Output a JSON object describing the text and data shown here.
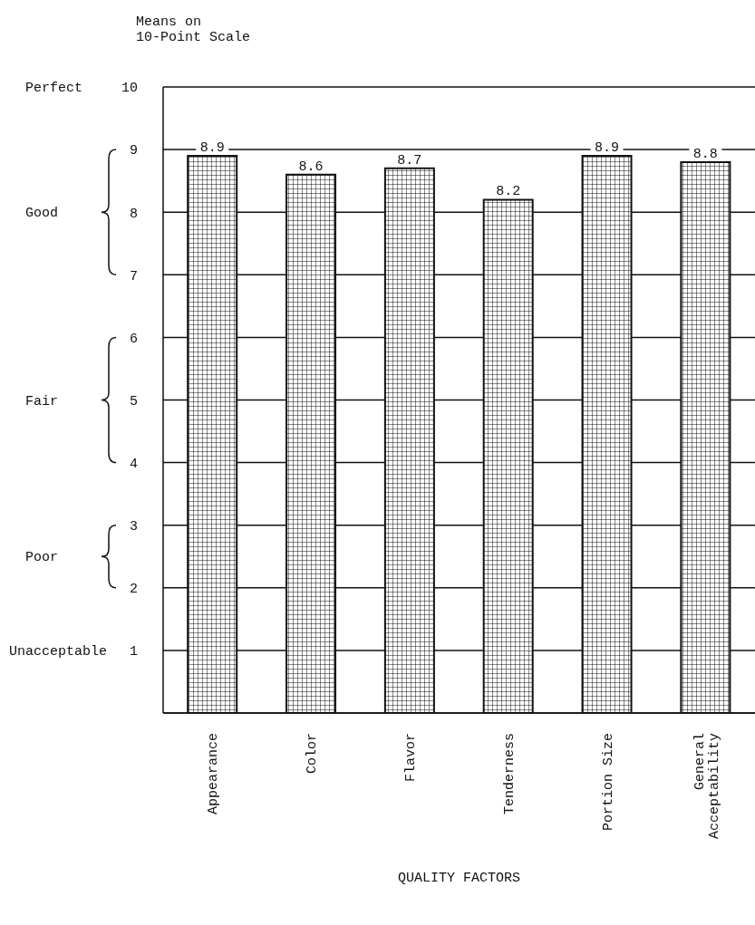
{
  "chart_data": {
    "type": "bar",
    "ylabel": "Means on\n10-Point Scale",
    "xlabel": "QUALITY FACTORS",
    "categories": [
      "Appearance",
      "Color",
      "Flavor",
      "Tenderness",
      "Portion Size",
      "General Acceptability"
    ],
    "values": [
      8.9,
      8.6,
      8.7,
      8.2,
      8.9,
      8.8
    ],
    "color": "#111111",
    "ylim": [
      0,
      10
    ],
    "yticks": [
      {
        "value": 0,
        "label": null
      },
      1,
      2,
      3,
      4,
      5,
      6,
      7,
      8,
      9,
      10
    ],
    "grid": "y",
    "data_labels": true,
    "annotations": [
      "Perfect",
      "Good",
      "Fair",
      "Poor",
      "Unacceptable"
    ]
  }
}
